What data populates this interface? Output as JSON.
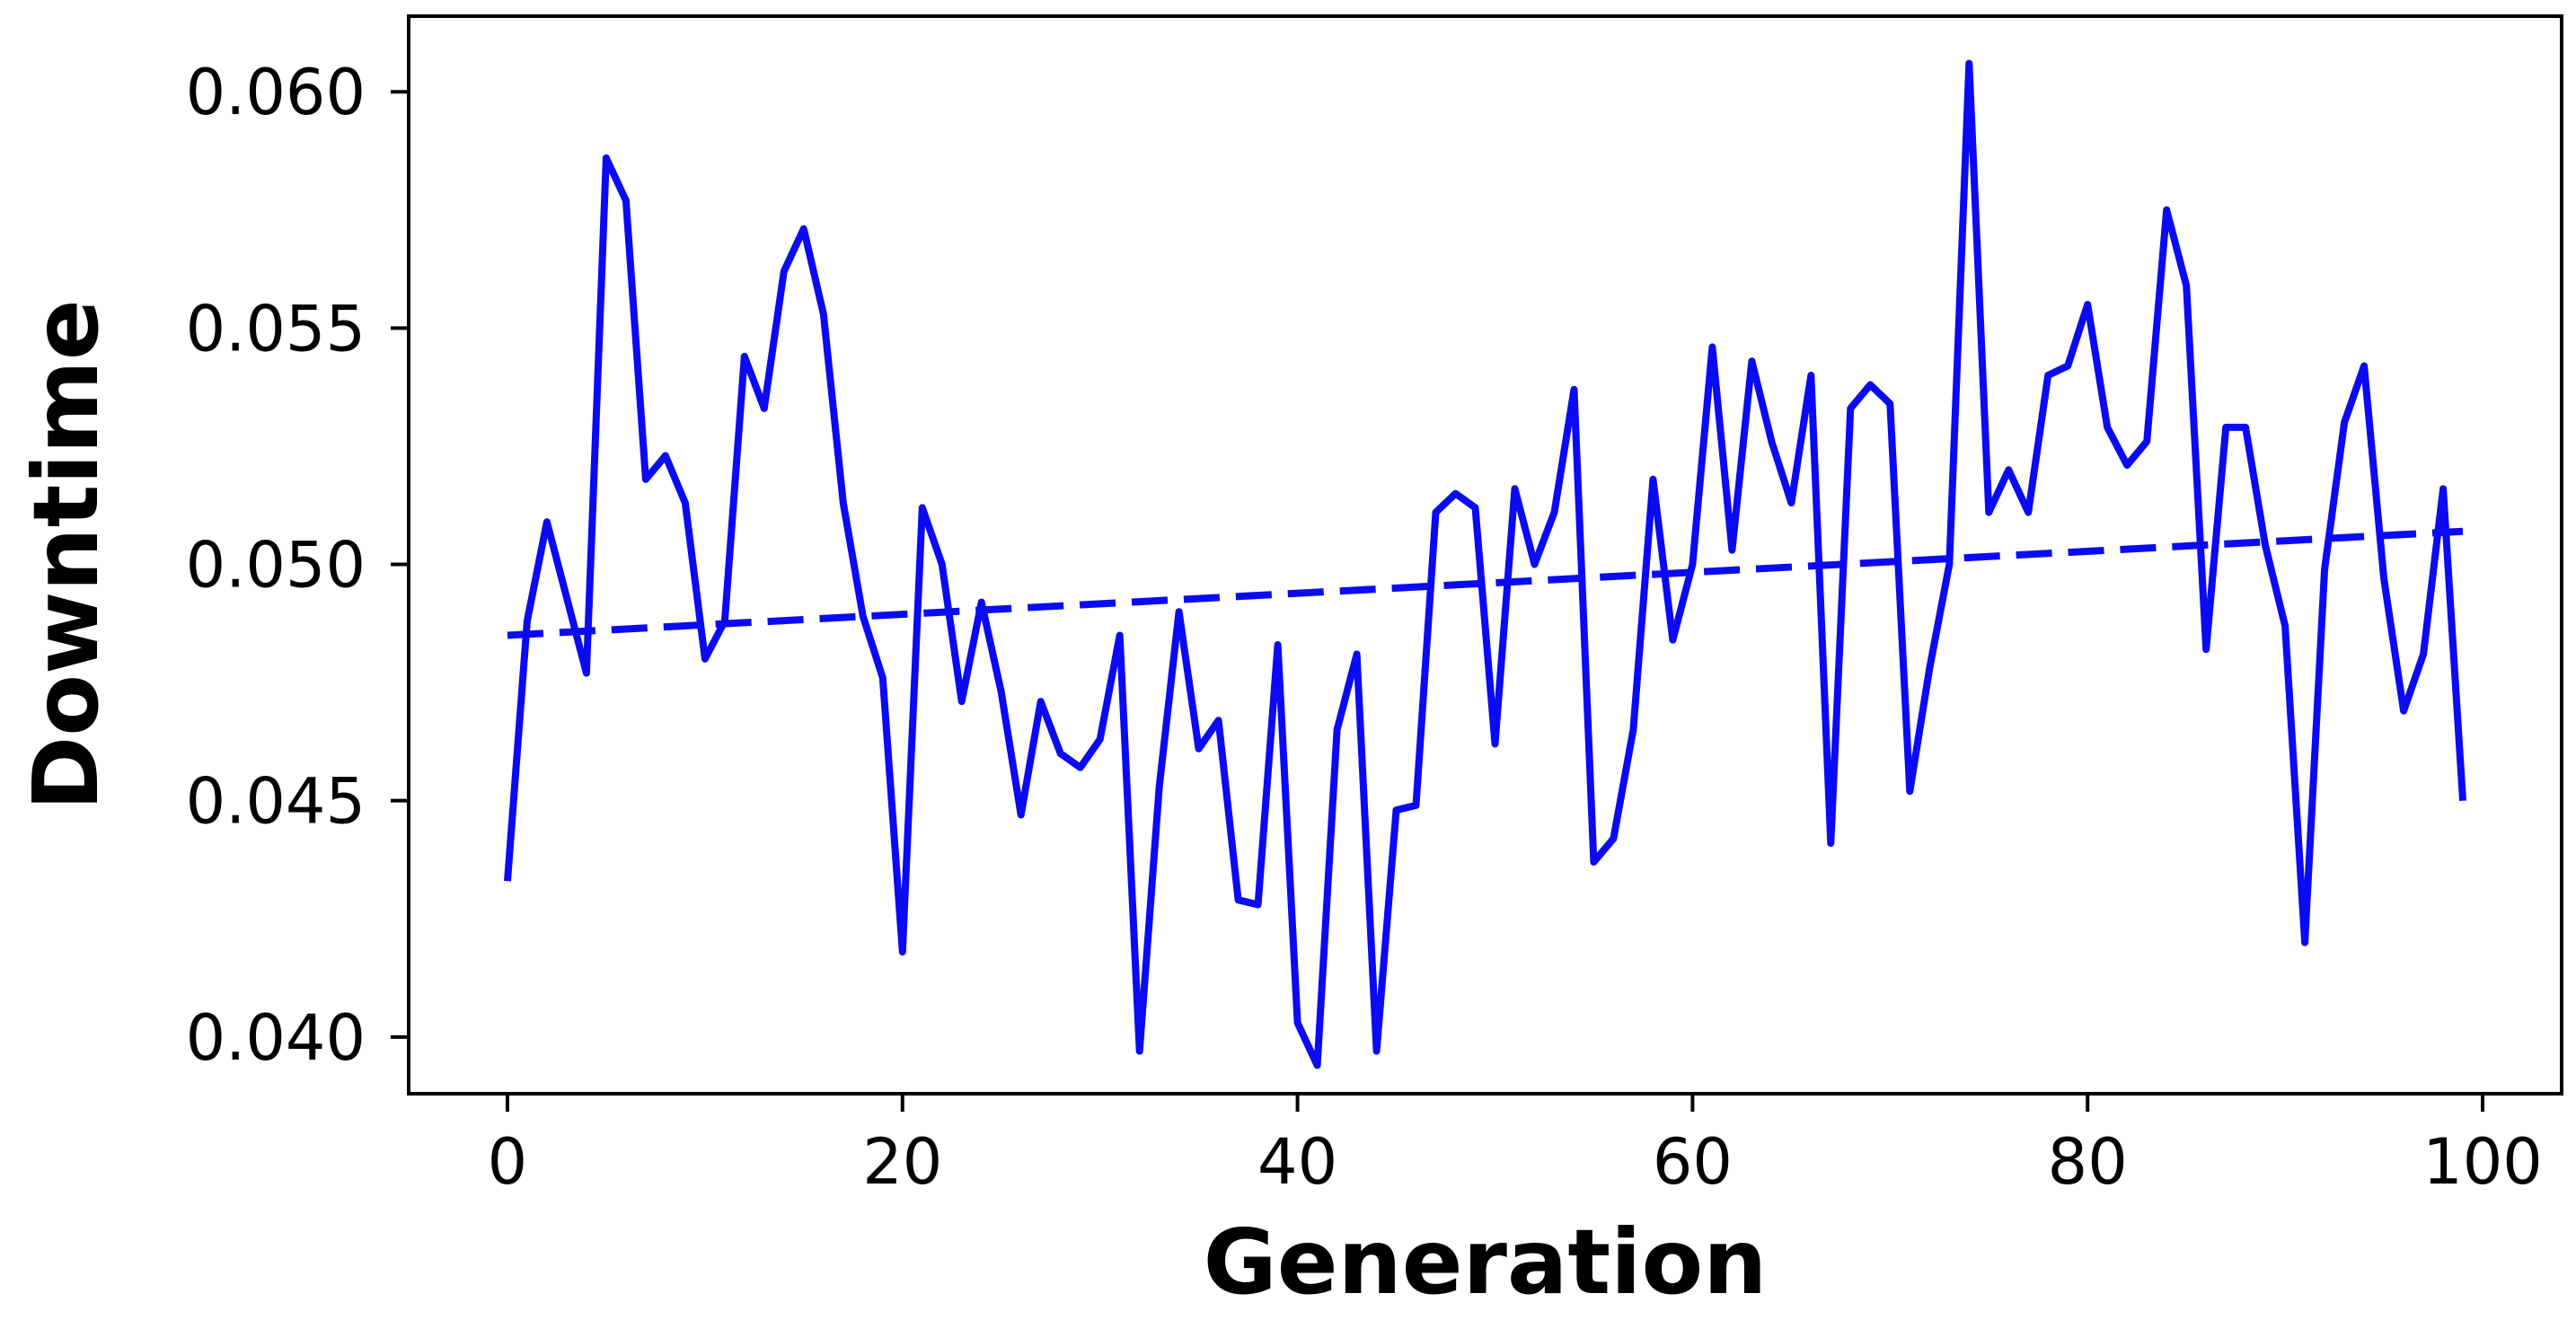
{
  "chart_data": {
    "type": "line",
    "title": "",
    "xlabel": "Generation",
    "ylabel": "Downtime",
    "xlim": [
      -5,
      104
    ],
    "ylim": [
      0.0388,
      0.0616
    ],
    "x_ticks": [
      0,
      20,
      40,
      60,
      80,
      100
    ],
    "x_tick_labels": [
      "0",
      "20",
      "40",
      "60",
      "80",
      "100"
    ],
    "y_ticks": [
      0.04,
      0.045,
      0.05,
      0.055,
      0.06
    ],
    "y_tick_labels": [
      "0.040",
      "0.045",
      "0.050",
      "0.055",
      "0.060"
    ],
    "grid": false,
    "legend": "none",
    "colors": {
      "series": "#0a0af5",
      "axis": "#000000",
      "background": "#ffffff"
    },
    "series": [
      {
        "style": "solid",
        "x": [
          0,
          1,
          2,
          3,
          4,
          5,
          6,
          7,
          8,
          9,
          10,
          11,
          12,
          13,
          14,
          15,
          16,
          17,
          18,
          19,
          20,
          21,
          22,
          23,
          24,
          25,
          26,
          27,
          28,
          29,
          30,
          31,
          32,
          33,
          34,
          35,
          36,
          37,
          38,
          39,
          40,
          41,
          42,
          43,
          44,
          45,
          46,
          47,
          48,
          49,
          50,
          51,
          52,
          53,
          54,
          55,
          56,
          57,
          58,
          59,
          60,
          61,
          62,
          63,
          64,
          65,
          66,
          67,
          68,
          69,
          70,
          71,
          72,
          73,
          74,
          75,
          76,
          77,
          78,
          79,
          80,
          81,
          82,
          83,
          84,
          85,
          86,
          87,
          88,
          89,
          90,
          91,
          92,
          93,
          94,
          95,
          96,
          97,
          98,
          99
        ],
        "y": [
          0.0433,
          0.0488,
          0.0509,
          0.0493,
          0.0477,
          0.0586,
          0.0577,
          0.0518,
          0.0523,
          0.0513,
          0.048,
          0.0488,
          0.0544,
          0.0533,
          0.0562,
          0.0571,
          0.0553,
          0.0513,
          0.0489,
          0.0476,
          0.0418,
          0.0512,
          0.05,
          0.0471,
          0.0492,
          0.0473,
          0.0447,
          0.0471,
          0.046,
          0.0457,
          0.0463,
          0.0485,
          0.0397,
          0.0453,
          0.049,
          0.0461,
          0.0467,
          0.0429,
          0.0428,
          0.0483,
          0.0403,
          0.0394,
          0.0465,
          0.0481,
          0.0397,
          0.0448,
          0.0449,
          0.0511,
          0.0515,
          0.0512,
          0.0462,
          0.0516,
          0.05,
          0.0511,
          0.0537,
          0.0437,
          0.0442,
          0.0465,
          0.0518,
          0.0484,
          0.05,
          0.0546,
          0.0503,
          0.0543,
          0.0526,
          0.0513,
          0.054,
          0.0441,
          0.0533,
          0.0538,
          0.0534,
          0.0452,
          0.0478,
          0.05,
          0.0606,
          0.0511,
          0.052,
          0.0511,
          0.054,
          0.0542,
          0.0555,
          0.0529,
          0.0521,
          0.0526,
          0.0575,
          0.0559,
          0.0482,
          0.0529,
          0.0529,
          0.0504,
          0.0487,
          0.042,
          0.0499,
          0.053,
          0.0542,
          0.0497,
          0.0469,
          0.0481,
          0.0516,
          0.045
        ]
      },
      {
        "style": "dashed",
        "x": [
          0,
          99
        ],
        "y": [
          0.0485,
          0.0507
        ]
      }
    ]
  }
}
